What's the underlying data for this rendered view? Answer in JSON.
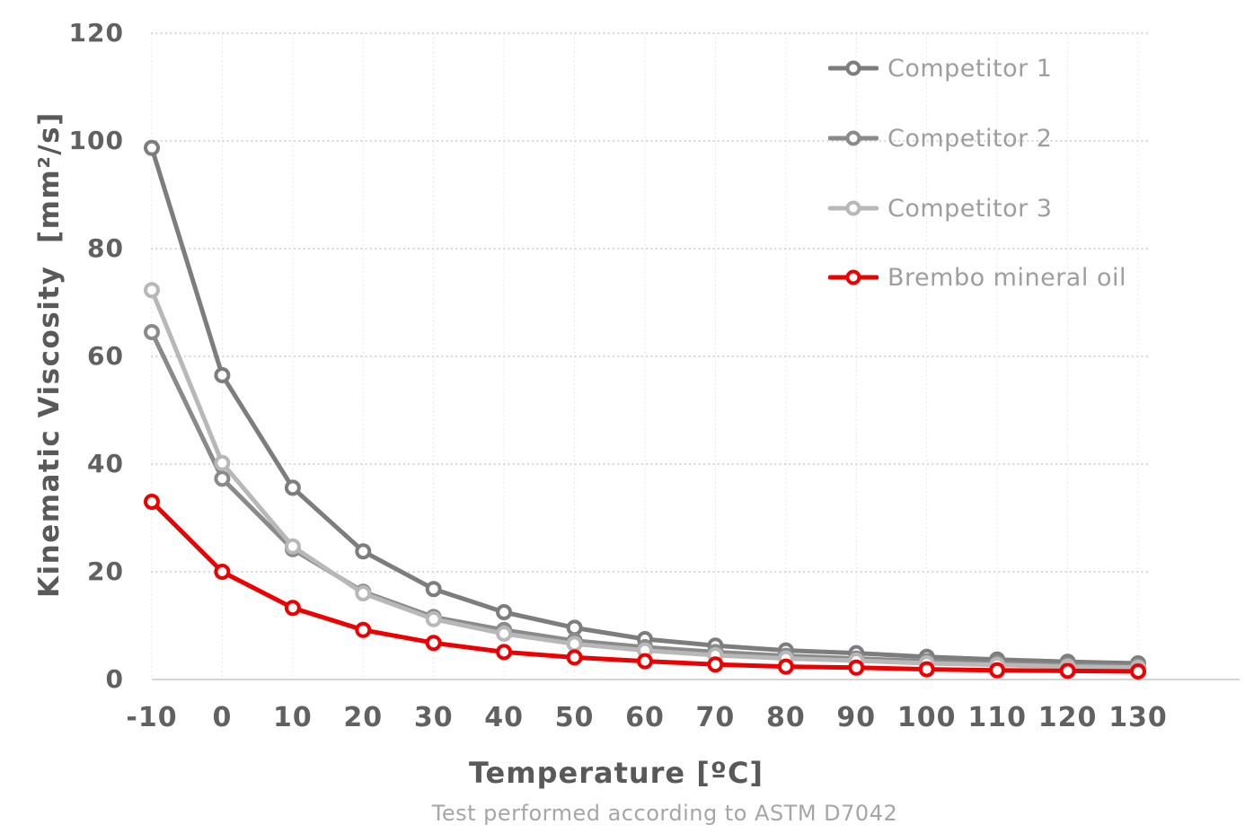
{
  "chart_data": {
    "type": "line",
    "title": "",
    "xlabel": "Temperature [ºC]",
    "ylabel": "Kinematic Viscosity  [mm²/s]",
    "subtitle": "Test performed according to ASTM D7042",
    "x": [
      -10,
      0,
      10,
      20,
      30,
      40,
      50,
      60,
      70,
      80,
      90,
      100,
      110,
      120,
      130
    ],
    "xlim": [
      -10,
      130
    ],
    "ylim": [
      0,
      120
    ],
    "y_ticks": [
      0,
      20,
      40,
      60,
      80,
      100,
      120
    ],
    "grid": true,
    "legend_position": "top-right",
    "marker_style": "open-circle",
    "series": [
      {
        "name": "Competitor 1",
        "color": "#7d7d7d",
        "values": [
          98.7,
          56.5,
          35.6,
          23.8,
          16.8,
          12.5,
          9.6,
          7.5,
          6.3,
          5.4,
          4.9,
          4.2,
          3.7,
          3.3,
          3.0
        ]
      },
      {
        "name": "Competitor 2",
        "color": "#8a8a8a",
        "values": [
          64.5,
          37.3,
          24.2,
          16.3,
          11.6,
          9.2,
          7.2,
          6.0,
          5.1,
          4.4,
          3.9,
          3.4,
          3.0,
          2.7,
          2.5
        ]
      },
      {
        "name": "Competitor 3",
        "color": "#b8b8b8",
        "values": [
          72.3,
          40.2,
          24.7,
          16.0,
          11.2,
          8.5,
          6.6,
          5.4,
          4.5,
          3.9,
          3.5,
          3.0,
          2.7,
          2.4,
          2.2
        ]
      },
      {
        "name": "Brembo mineral oil",
        "color": "#ee0000",
        "values": [
          33.0,
          20.0,
          13.3,
          9.2,
          6.8,
          5.1,
          4.1,
          3.4,
          2.8,
          2.4,
          2.2,
          1.9,
          1.7,
          1.6,
          1.5
        ]
      }
    ]
  }
}
